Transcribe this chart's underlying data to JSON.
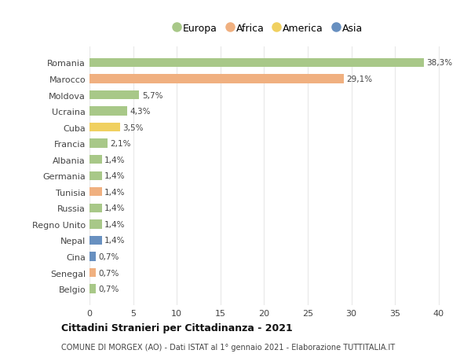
{
  "countries": [
    "Romania",
    "Marocco",
    "Moldova",
    "Ucraina",
    "Cuba",
    "Francia",
    "Albania",
    "Germania",
    "Tunisia",
    "Russia",
    "Regno Unito",
    "Nepal",
    "Cina",
    "Senegal",
    "Belgio"
  ],
  "values": [
    38.3,
    29.1,
    5.7,
    4.3,
    3.5,
    2.1,
    1.4,
    1.4,
    1.4,
    1.4,
    1.4,
    1.4,
    0.7,
    0.7,
    0.7
  ],
  "labels": [
    "38,3%",
    "29,1%",
    "5,7%",
    "4,3%",
    "3,5%",
    "2,1%",
    "1,4%",
    "1,4%",
    "1,4%",
    "1,4%",
    "1,4%",
    "1,4%",
    "0,7%",
    "0,7%",
    "0,7%"
  ],
  "continents": [
    "Europa",
    "Africa",
    "Europa",
    "Europa",
    "America",
    "Europa",
    "Europa",
    "Europa",
    "Africa",
    "Europa",
    "Europa",
    "Asia",
    "Asia",
    "Africa",
    "Europa"
  ],
  "continent_colors": {
    "Europa": "#a8c888",
    "Africa": "#f0b080",
    "America": "#f0d060",
    "Asia": "#6890c0"
  },
  "legend_order": [
    "Europa",
    "Africa",
    "America",
    "Asia"
  ],
  "background_color": "#ffffff",
  "grid_color": "#e8e8e8",
  "title": "Cittadini Stranieri per Cittadinanza - 2021",
  "subtitle": "COMUNE DI MORGEX (AO) - Dati ISTAT al 1° gennaio 2021 - Elaborazione TUTTITALIA.IT",
  "xlim": [
    0,
    41
  ],
  "xticks": [
    0,
    5,
    10,
    15,
    20,
    25,
    30,
    35,
    40
  ],
  "bar_height": 0.55
}
